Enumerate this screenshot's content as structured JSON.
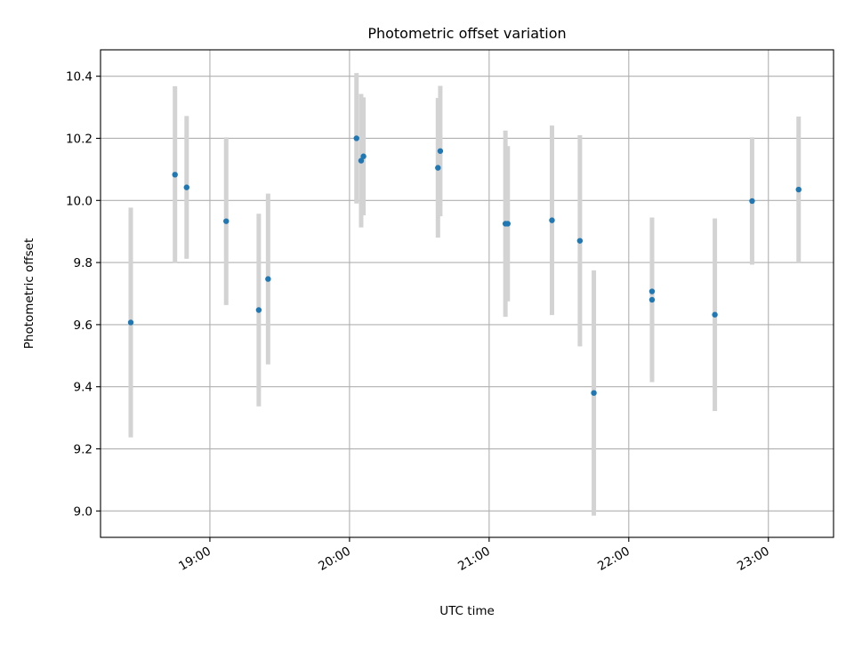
{
  "chart_data": {
    "type": "scatter",
    "title": "Photometric offset variation",
    "xlabel": "UTC time",
    "ylabel": "Photometric offset",
    "x_unit": "UTC time (HH:MM)",
    "xlim": [
      "18:13",
      "23:28"
    ],
    "ylim": [
      8.915,
      10.485
    ],
    "grid": true,
    "x_ticks": [
      "19:00",
      "20:00",
      "21:00",
      "22:00",
      "23:00"
    ],
    "y_ticks": [
      "9.0",
      "9.2",
      "9.4",
      "9.6",
      "9.8",
      "10.0",
      "10.2",
      "10.4"
    ],
    "colors": {
      "point": "#1f77b4",
      "error_bar": "#d3d3d3",
      "grid": "#b0b0b0"
    },
    "points": [
      {
        "x": "18:26",
        "y": 9.607,
        "err": 0.37
      },
      {
        "x": "18:45",
        "y": 10.083,
        "err": 0.285
      },
      {
        "x": "18:50",
        "y": 10.042,
        "err": 0.23
      },
      {
        "x": "19:07",
        "y": 9.933,
        "err": 0.27
      },
      {
        "x": "19:21",
        "y": 9.647,
        "err": 0.31
      },
      {
        "x": "19:25",
        "y": 9.747,
        "err": 0.275
      },
      {
        "x": "20:03",
        "y": 10.2,
        "err": 0.21
      },
      {
        "x": "20:05",
        "y": 10.128,
        "err": 0.215
      },
      {
        "x": "20:06",
        "y": 10.142,
        "err": 0.19
      },
      {
        "x": "20:38",
        "y": 10.105,
        "err": 0.225
      },
      {
        "x": "20:39",
        "y": 10.159,
        "err": 0.21
      },
      {
        "x": "21:07",
        "y": 9.925,
        "err": 0.3
      },
      {
        "x": "21:08",
        "y": 9.925,
        "err": 0.25
      },
      {
        "x": "21:27",
        "y": 9.936,
        "err": 0.305
      },
      {
        "x": "21:39",
        "y": 9.87,
        "err": 0.34
      },
      {
        "x": "21:45",
        "y": 9.38,
        "err": 0.395
      },
      {
        "x": "22:10",
        "y": 9.68,
        "err": 0.265
      },
      {
        "x": "22:10",
        "y": 9.707,
        "err": 0.23
      },
      {
        "x": "22:37",
        "y": 9.632,
        "err": 0.31
      },
      {
        "x": "22:53",
        "y": 9.998,
        "err": 0.205
      },
      {
        "x": "23:13",
        "y": 10.035,
        "err": 0.235
      }
    ]
  }
}
